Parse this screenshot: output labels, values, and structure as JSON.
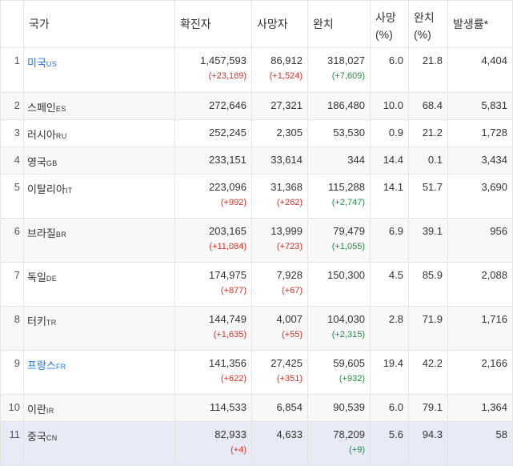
{
  "headers": {
    "country": "국가",
    "confirmed": "확진자",
    "deaths": "사망자",
    "recovered": "완치",
    "death_rate_line1": "사망",
    "death_rate_line2": "(%)",
    "recovery_rate_line1": "완치",
    "recovery_rate_line2": "(%)",
    "incidence": "발생률*"
  },
  "rows": [
    {
      "rank": "1",
      "name": "미국",
      "code": "US",
      "confirmed": "1,457,593",
      "confirmed_delta": "(+23,169)",
      "deaths": "86,912",
      "deaths_delta": "(+1,524)",
      "recovered": "318,027",
      "recovered_delta": "(+7,609)",
      "death_rate": "6.0",
      "recovery_rate": "21.8",
      "incidence": "4,404"
    },
    {
      "rank": "2",
      "name": "스페인",
      "code": "ES",
      "confirmed": "272,646",
      "confirmed_delta": "",
      "deaths": "27,321",
      "deaths_delta": "",
      "recovered": "186,480",
      "recovered_delta": "",
      "death_rate": "10.0",
      "recovery_rate": "68.4",
      "incidence": "5,831"
    },
    {
      "rank": "3",
      "name": "러시아",
      "code": "RU",
      "confirmed": "252,245",
      "confirmed_delta": "",
      "deaths": "2,305",
      "deaths_delta": "",
      "recovered": "53,530",
      "recovered_delta": "",
      "death_rate": "0.9",
      "recovery_rate": "21.2",
      "incidence": "1,728"
    },
    {
      "rank": "4",
      "name": "영국",
      "code": "GB",
      "confirmed": "233,151",
      "confirmed_delta": "",
      "deaths": "33,614",
      "deaths_delta": "",
      "recovered": "344",
      "recovered_delta": "",
      "death_rate": "14.4",
      "recovery_rate": "0.1",
      "incidence": "3,434"
    },
    {
      "rank": "5",
      "name": "이탈리아",
      "code": "IT",
      "confirmed": "223,096",
      "confirmed_delta": "(+992)",
      "deaths": "31,368",
      "deaths_delta": "(+262)",
      "recovered": "115,288",
      "recovered_delta": "(+2,747)",
      "death_rate": "14.1",
      "recovery_rate": "51.7",
      "incidence": "3,690"
    },
    {
      "rank": "6",
      "name": "브라질",
      "code": "BR",
      "confirmed": "203,165",
      "confirmed_delta": "(+11,084)",
      "deaths": "13,999",
      "deaths_delta": "(+723)",
      "recovered": "79,479",
      "recovered_delta": "(+1,055)",
      "death_rate": "6.9",
      "recovery_rate": "39.1",
      "incidence": "956"
    },
    {
      "rank": "7",
      "name": "독일",
      "code": "DE",
      "confirmed": "174,975",
      "confirmed_delta": "(+877)",
      "deaths": "7,928",
      "deaths_delta": "(+67)",
      "recovered": "150,300",
      "recovered_delta": "",
      "death_rate": "4.5",
      "recovery_rate": "85.9",
      "incidence": "2,088"
    },
    {
      "rank": "8",
      "name": "터키",
      "code": "TR",
      "confirmed": "144,749",
      "confirmed_delta": "(+1,635)",
      "deaths": "4,007",
      "deaths_delta": "(+55)",
      "recovered": "104,030",
      "recovered_delta": "(+2,315)",
      "death_rate": "2.8",
      "recovery_rate": "71.9",
      "incidence": "1,716"
    },
    {
      "rank": "9",
      "name": "프랑스",
      "code": "FR",
      "confirmed": "141,356",
      "confirmed_delta": "(+622)",
      "deaths": "27,425",
      "deaths_delta": "(+351)",
      "recovered": "59,605",
      "recovered_delta": "(+932)",
      "death_rate": "19.4",
      "recovery_rate": "42.2",
      "incidence": "2,166"
    },
    {
      "rank": "10",
      "name": "이란",
      "code": "IR",
      "confirmed": "114,533",
      "confirmed_delta": "",
      "deaths": "6,854",
      "deaths_delta": "",
      "recovered": "90,539",
      "recovered_delta": "",
      "death_rate": "6.0",
      "recovery_rate": "79.1",
      "incidence": "1,364"
    },
    {
      "rank": "11",
      "name": "중국",
      "code": "CN",
      "confirmed": "82,933",
      "confirmed_delta": "(+4)",
      "deaths": "4,633",
      "deaths_delta": "",
      "recovered": "78,209",
      "recovered_delta": "(+9)",
      "death_rate": "5.6",
      "recovery_rate": "94.3",
      "incidence": "58"
    }
  ]
}
